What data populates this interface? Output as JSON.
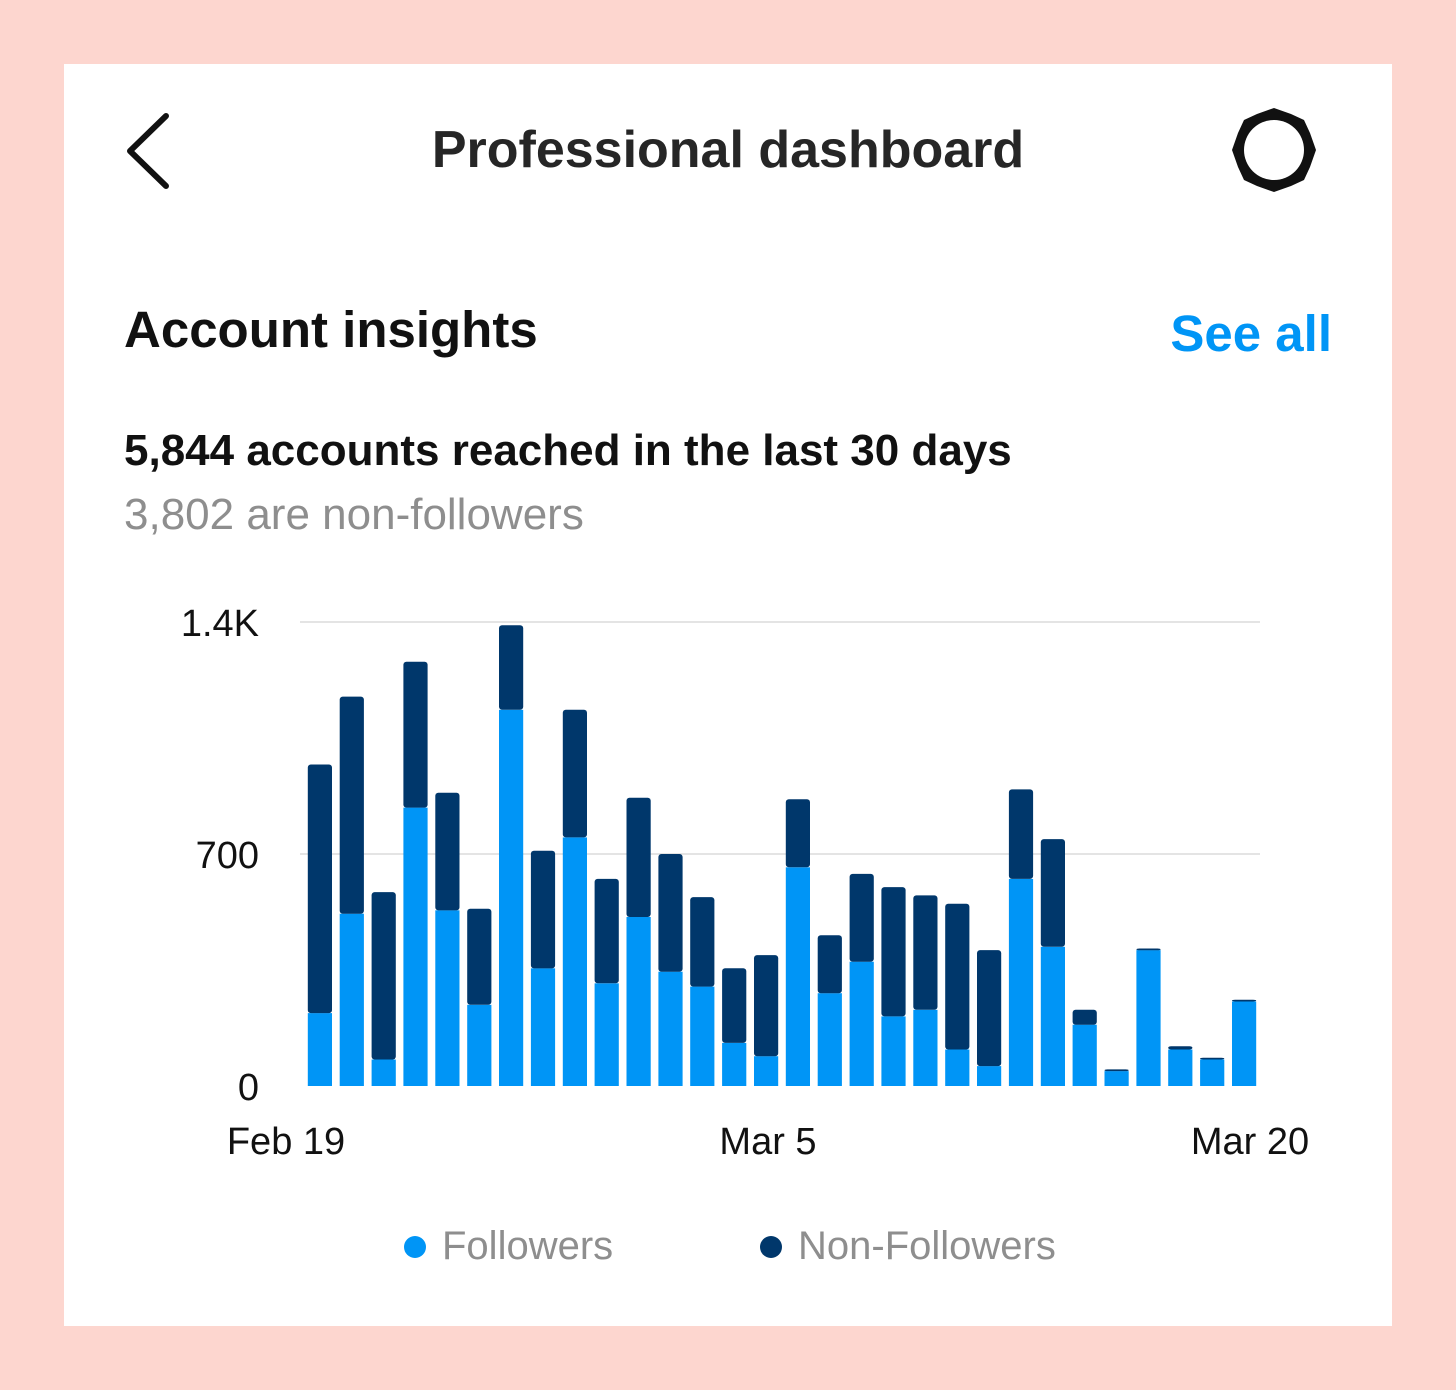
{
  "header": {
    "title": "Professional dashboard",
    "back_icon": "chevron-left-icon",
    "settings_icon": "gear-icon"
  },
  "insights": {
    "title": "Account insights",
    "see_all_label": "See all",
    "reach_text": "5,844 accounts reached in the last 30 days",
    "nonfollowers_text": "3,802 are non-followers"
  },
  "colors": {
    "accent": "#0095f6",
    "followers": "#0095f6",
    "non_followers": "#00376b",
    "background": "#fdd6cf"
  },
  "chart_data": {
    "type": "bar",
    "stacked": true,
    "ylim": [
      0,
      1400
    ],
    "y_ticks": [
      "0",
      "700",
      "1.4K"
    ],
    "y_tick_values": [
      0,
      700,
      1400
    ],
    "x_tick_labels": [
      "Feb 19",
      "Mar 5",
      "Mar 20"
    ],
    "grid": true,
    "legend_position": "bottom",
    "series": [
      {
        "name": "Followers",
        "color": "#0095f6",
        "values": [
          220,
          520,
          80,
          840,
          530,
          245,
          1135,
          355,
          750,
          310,
          510,
          345,
          300,
          130,
          90,
          660,
          280,
          375,
          210,
          230,
          110,
          60,
          625,
          420,
          185,
          45,
          410,
          110,
          80,
          255
        ]
      },
      {
        "name": "Non-Followers",
        "color": "#00376b",
        "values": [
          750,
          655,
          505,
          440,
          355,
          290,
          255,
          355,
          385,
          315,
          360,
          355,
          270,
          225,
          305,
          205,
          175,
          265,
          390,
          345,
          440,
          350,
          270,
          325,
          45,
          5,
          5,
          10,
          5,
          5
        ]
      }
    ]
  }
}
